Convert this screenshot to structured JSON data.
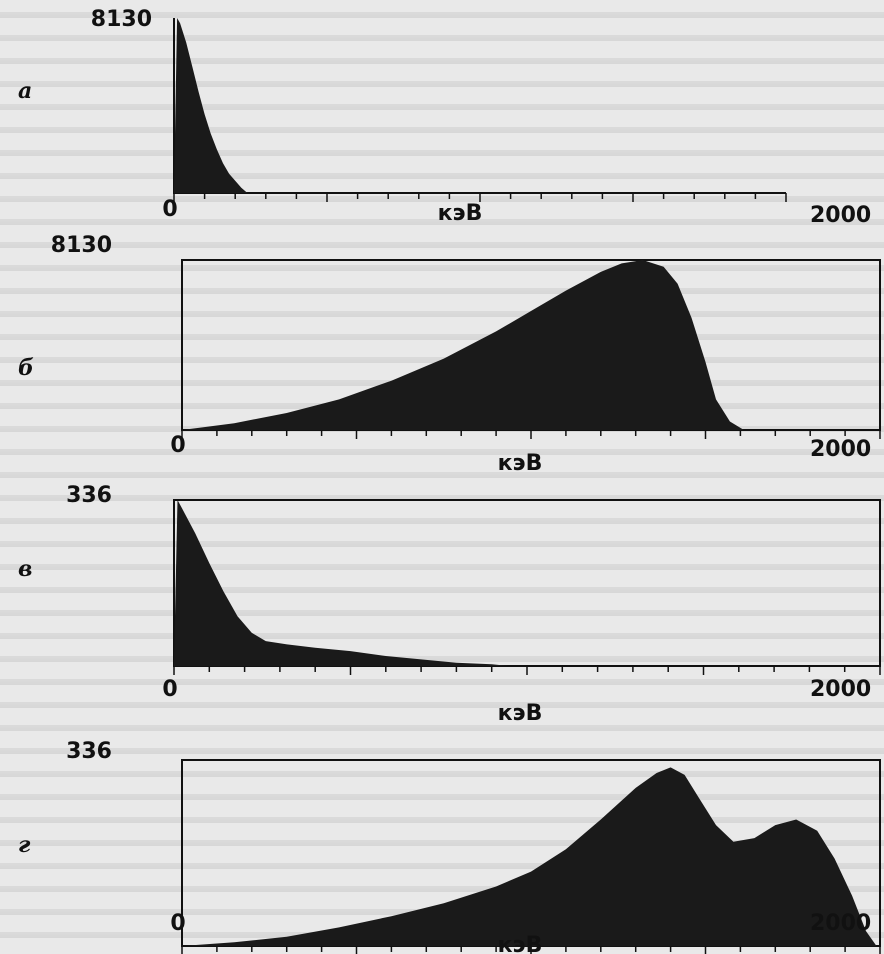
{
  "chart_data": [
    {
      "type": "area",
      "panel_label": "а",
      "ymax_label": "8130",
      "xmin_label": "0",
      "xmax_label": "2000",
      "xlabel": "кэВ",
      "xlim": [
        0,
        2000
      ],
      "ylim": [
        0,
        1
      ],
      "x": [
        0,
        10,
        20,
        40,
        60,
        80,
        100,
        120,
        140,
        160,
        180,
        200,
        220,
        240
      ],
      "values": [
        0.02,
        1.0,
        0.97,
        0.86,
        0.72,
        0.58,
        0.45,
        0.34,
        0.25,
        0.17,
        0.11,
        0.07,
        0.03,
        0.0
      ],
      "color": "#1a1a1a"
    },
    {
      "type": "area",
      "panel_label": "б",
      "ymax_label": "8130",
      "xmin_label": "0",
      "xmax_label": "2000",
      "xlabel": "кэВ",
      "xlim": [
        0,
        2000
      ],
      "ylim": [
        0,
        1
      ],
      "x": [
        0,
        150,
        300,
        450,
        600,
        750,
        900,
        1000,
        1100,
        1200,
        1260,
        1320,
        1380,
        1420,
        1460,
        1500,
        1530,
        1570,
        1610
      ],
      "values": [
        0.0,
        0.04,
        0.1,
        0.18,
        0.29,
        0.42,
        0.58,
        0.7,
        0.82,
        0.93,
        0.98,
        1.0,
        0.96,
        0.86,
        0.66,
        0.4,
        0.18,
        0.05,
        0.0
      ],
      "color": "#1a1a1a"
    },
    {
      "type": "area",
      "panel_label": "в",
      "ymax_label": "336",
      "xmin_label": "0",
      "xmax_label": "2000",
      "xlabel": "кэВ",
      "xlim": [
        0,
        2000
      ],
      "ylim": [
        0,
        1
      ],
      "x": [
        0,
        10,
        20,
        60,
        100,
        140,
        180,
        220,
        260,
        320,
        400,
        500,
        600,
        700,
        800,
        900,
        950
      ],
      "values": [
        0.02,
        1.0,
        0.96,
        0.8,
        0.62,
        0.45,
        0.3,
        0.2,
        0.15,
        0.13,
        0.11,
        0.09,
        0.06,
        0.04,
        0.02,
        0.01,
        0.0
      ],
      "color": "#1a1a1a"
    },
    {
      "type": "area",
      "panel_label": "г",
      "ymax_label": "336",
      "xmin_label": "0",
      "xmax_label": "2000",
      "xlabel": "кэВ",
      "xlim": [
        0,
        2000
      ],
      "ylim": [
        0,
        1
      ],
      "x": [
        0,
        150,
        300,
        450,
        600,
        750,
        900,
        1000,
        1100,
        1200,
        1300,
        1360,
        1400,
        1440,
        1480,
        1530,
        1580,
        1640,
        1700,
        1760,
        1820,
        1870,
        1920,
        1960,
        1990
      ],
      "values": [
        0.0,
        0.02,
        0.05,
        0.1,
        0.16,
        0.23,
        0.32,
        0.4,
        0.52,
        0.68,
        0.85,
        0.93,
        0.96,
        0.92,
        0.8,
        0.65,
        0.56,
        0.58,
        0.65,
        0.68,
        0.62,
        0.47,
        0.27,
        0.08,
        0.0
      ],
      "color": "#1a1a1a"
    }
  ]
}
